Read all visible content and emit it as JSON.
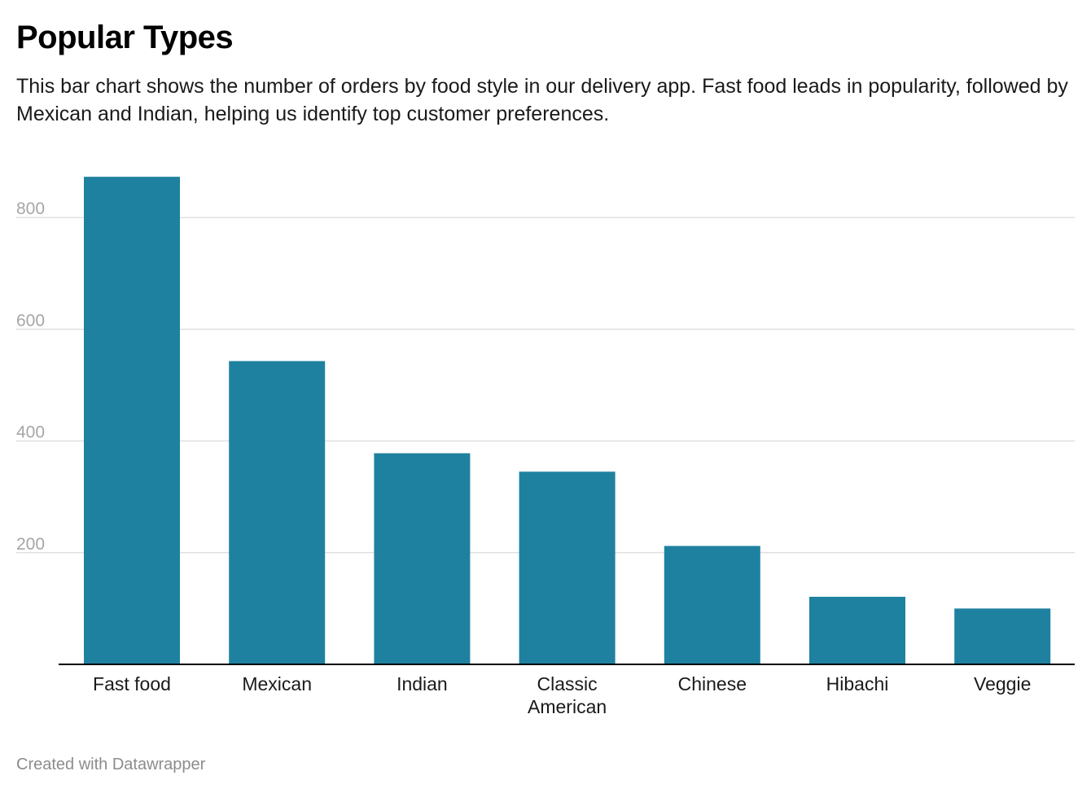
{
  "header": {
    "title": "Popular Types",
    "subtitle": "This bar chart shows the number of orders by food style in our delivery app. Fast food leads in popularity, followed by Mexican and Indian, helping us identify top customer preferences."
  },
  "footer": {
    "credit": "Created with Datawrapper"
  },
  "colors": {
    "bar": "#1f81a0",
    "gridline": "#e0e0e0",
    "baseline": "#000000",
    "tick_label": "#a6a6a6",
    "category_label": "#1a1a1a"
  },
  "chart_data": {
    "type": "bar",
    "title": "Popular Types",
    "xlabel": "",
    "ylabel": "",
    "categories": [
      [
        "Fast food"
      ],
      [
        "Mexican"
      ],
      [
        "Indian"
      ],
      [
        "Classic",
        "American"
      ],
      [
        "Chinese"
      ],
      [
        "Hibachi"
      ],
      [
        "Veggie"
      ]
    ],
    "values": [
      873,
      543,
      378,
      345,
      212,
      121,
      100
    ],
    "ylim": [
      0,
      900
    ],
    "yticks": [
      200,
      400,
      600,
      800
    ],
    "grid": true,
    "legend": "none"
  }
}
